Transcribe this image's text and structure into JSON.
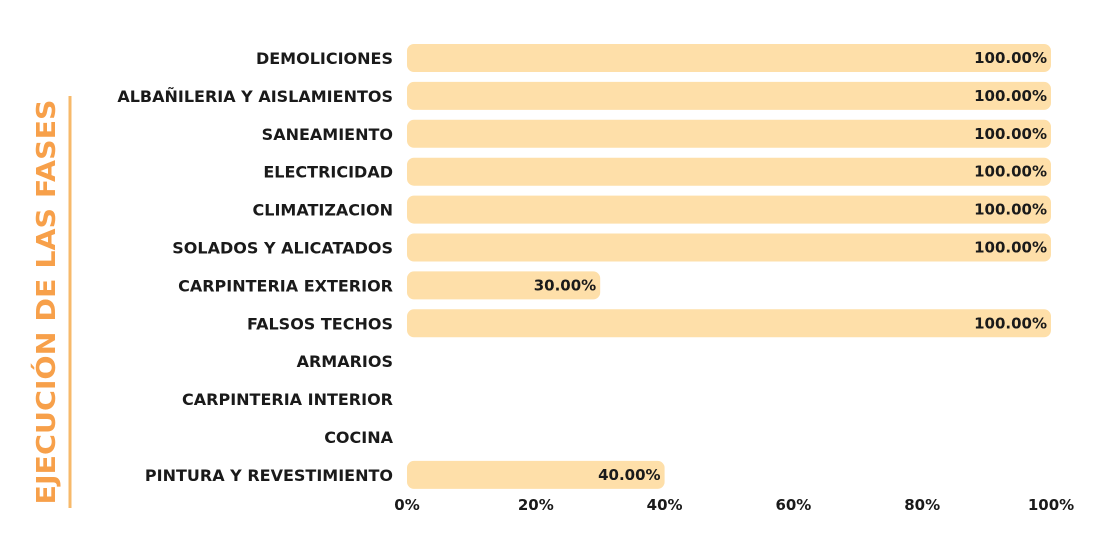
{
  "side_title": "EJECUCIÓN DE LAS FASES",
  "colors": {
    "bar": "#fedfa9",
    "accent": "#f7a04a",
    "rule": "#f7b96a",
    "text": "#1a1a1a"
  },
  "chart_data": {
    "type": "bar",
    "orientation": "horizontal",
    "title": "EJECUCIÓN DE LAS FASES",
    "categories": [
      "DEMOLICIONES",
      "ALBAÑILERIA Y AISLAMIENTOS",
      "SANEAMIENTO",
      "ELECTRICIDAD",
      "CLIMATIZACION",
      "SOLADOS Y ALICATADOS",
      "CARPINTERIA EXTERIOR",
      "FALSOS TECHOS",
      "ARMARIOS",
      "CARPINTERIA INTERIOR",
      "COCINA",
      "PINTURA Y REVESTIMIENTO"
    ],
    "values": [
      100,
      100,
      100,
      100,
      100,
      100,
      30,
      100,
      0,
      0,
      0,
      40
    ],
    "data_labels": [
      "100.00%",
      "100.00%",
      "100.00%",
      "100.00%",
      "100.00%",
      "100.00%",
      "30.00%",
      "100.00%",
      "",
      "",
      "",
      "40.00%"
    ],
    "xlim": [
      0,
      100
    ],
    "xticks": [
      0,
      20,
      40,
      60,
      80,
      100
    ],
    "xtick_labels": [
      "0%",
      "20%",
      "40%",
      "60%",
      "80%",
      "100%"
    ],
    "xlabel": "",
    "ylabel": "EJECUCIÓN DE LAS FASES",
    "grid": false,
    "legend": "none"
  }
}
